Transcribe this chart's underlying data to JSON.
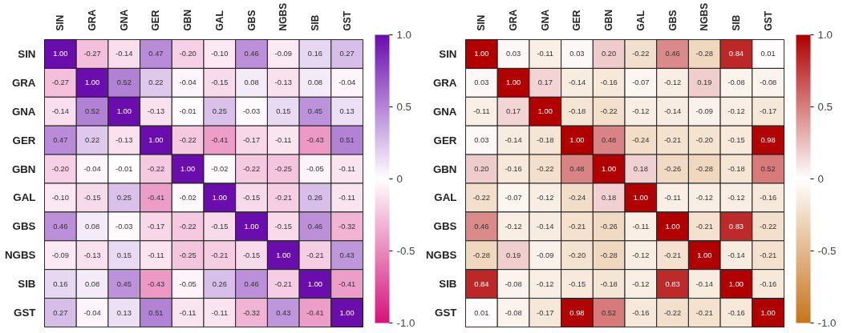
{
  "chart_data": [
    {
      "type": "heatmap",
      "categories": [
        "SIN",
        "GRA",
        "GNA",
        "GER",
        "GBN",
        "GAL",
        "GBS",
        "NGBS",
        "SIB",
        "GST"
      ],
      "y_categories": [
        "SIN",
        "GRA",
        "GNA",
        "GER",
        "GBN",
        "GAL",
        "GBS",
        "NGBS",
        "SIB",
        "GST"
      ],
      "colors": [
        "#d4147a",
        "#ffffff",
        "#6a0dad"
      ],
      "cells": [
        [
          1.0,
          -0.27,
          -0.14,
          0.47,
          -0.2,
          -0.1,
          0.46,
          -0.09,
          0.16,
          0.27
        ],
        [
          -0.27,
          1.0,
          0.52,
          0.22,
          -0.04,
          -0.15,
          0.08,
          -0.13,
          0.08,
          -0.04
        ],
        [
          -0.14,
          0.52,
          1.0,
          -0.13,
          -0.01,
          0.25,
          -0.03,
          0.15,
          0.45,
          0.13
        ],
        [
          0.47,
          0.22,
          -0.13,
          1.0,
          -0.22,
          -0.41,
          -0.17,
          -0.11,
          -0.43,
          0.51
        ],
        [
          -0.2,
          -0.04,
          -0.01,
          -0.22,
          1.0,
          -0.02,
          -0.22,
          -0.25,
          -0.05,
          -0.11
        ],
        [
          -0.1,
          -0.15,
          0.25,
          -0.41,
          -0.02,
          1.0,
          -0.15,
          -0.21,
          0.26,
          -0.11
        ],
        [
          0.46,
          0.08,
          -0.03,
          -0.17,
          -0.22,
          -0.15,
          1.0,
          -0.15,
          0.46,
          -0.32
        ],
        [
          -0.09,
          -0.13,
          0.15,
          -0.11,
          -0.25,
          -0.21,
          -0.15,
          1.0,
          -0.21,
          0.43
        ],
        [
          0.16,
          0.08,
          0.45,
          -0.43,
          -0.05,
          0.26,
          0.46,
          -0.21,
          1.0,
          -0.41
        ],
        [
          0.27,
          -0.04,
          0.13,
          0.51,
          -0.11,
          -0.11,
          -0.32,
          0.43,
          -0.41,
          1.0
        ]
      ],
      "cell_labels": [
        [
          "1.00",
          "-0.27",
          "-0.14",
          "0.47",
          "-0.20",
          "-0.10",
          "0.46",
          "-0.09",
          "0.16",
          "0.27"
        ],
        [
          "-0.27",
          "1.00",
          "0.52",
          "0.22",
          "-0.04",
          "-0.15",
          "0.08",
          "-0.13",
          "0.08",
          "-0.04"
        ],
        [
          "-0.14",
          "0.52",
          "1.00",
          "-0.13",
          "-0.01",
          "0.25",
          "-0.03",
          "0.15",
          "0.45",
          "0.13"
        ],
        [
          "0.47",
          "0.22",
          "-0.13",
          "1.00",
          "-0.22",
          "-0.41",
          "-0.17",
          "-0.11",
          "-0.43",
          "0.51"
        ],
        [
          "-0.20",
          "-0.04",
          "-0.01",
          "-0.22",
          "1.00",
          "-0.02",
          "-0.22",
          "-0.25",
          "-0.05",
          "-0.11"
        ],
        [
          "-0.10",
          "-0.15",
          "0.25",
          "-0.41",
          "-0.02",
          "1.00",
          "-0.15",
          "-0.21",
          "0.26",
          "-0.11"
        ],
        [
          "0.46",
          "0.08",
          "-0.03",
          "-0.17",
          "-0.22",
          "-0.15",
          "1.00",
          "-0.15",
          "0.46",
          "-0.32"
        ],
        [
          "-0.09",
          "-0.13",
          "0.15",
          "-0.11",
          "-0.25",
          "-0.21",
          "-0.15",
          "1.00",
          "-0.21",
          "0.43"
        ],
        [
          "0.16",
          "0.08",
          "0.45",
          "-0.43",
          "-0.05",
          "0.26",
          "0.46",
          "-0.21",
          "1.00",
          "-0.41"
        ],
        [
          "0.27",
          "-0.04",
          "0.13",
          "0.51",
          "-0.11",
          "-0.11",
          "-0.32",
          "0.43",
          "-0.41",
          "1.00"
        ]
      ],
      "clim": [
        -1,
        1
      ],
      "cticks": [
        {
          "value": -1,
          "label": "-1.0"
        },
        {
          "value": -0.5,
          "label": "-0.5"
        },
        0,
        {
          "value": 0.5,
          "label": "0.5"
        },
        {
          "value": 1,
          "label": "1.0"
        }
      ]
    },
    {
      "type": "heatmap",
      "categories": [
        "SIN",
        "GRA",
        "GNA",
        "GER",
        "GBN",
        "GAL",
        "GBS",
        "NGBS",
        "SIB",
        "GST"
      ],
      "y_categories": [
        "SIN",
        "GRA",
        "GNA",
        "GER",
        "GBN",
        "GAL",
        "GBS",
        "NGBS",
        "SIB",
        "GST"
      ],
      "colors": [
        "#c8741a",
        "#ffffff",
        "#b00000"
      ],
      "cells": [
        [
          1.0,
          0.03,
          -0.11,
          0.03,
          0.2,
          -0.22,
          0.46,
          -0.28,
          0.84,
          0.01
        ],
        [
          0.03,
          1.0,
          0.17,
          -0.14,
          -0.16,
          -0.07,
          -0.12,
          0.19,
          -0.08,
          -0.08
        ],
        [
          -0.11,
          0.17,
          1.0,
          -0.18,
          -0.22,
          -0.12,
          -0.14,
          -0.09,
          -0.12,
          -0.17
        ],
        [
          0.03,
          -0.14,
          -0.18,
          1.0,
          0.48,
          -0.24,
          -0.21,
          -0.2,
          -0.15,
          0.98
        ],
        [
          0.2,
          -0.16,
          -0.22,
          0.48,
          1.0,
          0.18,
          -0.26,
          -0.28,
          -0.18,
          0.52
        ],
        [
          -0.22,
          -0.07,
          -0.12,
          -0.24,
          0.18,
          1.0,
          -0.11,
          -0.12,
          -0.12,
          -0.16
        ],
        [
          0.46,
          -0.12,
          -0.14,
          -0.21,
          -0.26,
          -0.11,
          1.0,
          -0.21,
          0.83,
          -0.22
        ],
        [
          -0.28,
          0.19,
          -0.09,
          -0.2,
          -0.28,
          -0.12,
          -0.21,
          1.0,
          -0.14,
          -0.21
        ],
        [
          0.84,
          -0.08,
          -0.12,
          -0.15,
          -0.18,
          -0.12,
          0.83,
          -0.14,
          1.0,
          -0.16
        ],
        [
          0.01,
          -0.08,
          -0.17,
          0.98,
          0.52,
          -0.16,
          -0.22,
          -0.21,
          -0.16,
          1.0
        ]
      ],
      "cell_labels": [
        [
          "1.00",
          "0.03",
          "-0.11",
          "0.03",
          "0.20",
          "-0.22",
          "0.46",
          "-0.28",
          "0.84",
          "0.01"
        ],
        [
          "0.03",
          "1.00",
          "0.17",
          "-0.14",
          "-0.16",
          "-0.07",
          "-0.12",
          "0.19",
          "-0.08",
          "-0.08"
        ],
        [
          "-0.11",
          "0.17",
          "1.00",
          "-0.18",
          "-0.22",
          "-0.12",
          "-0.14",
          "-0.09",
          "-0.12",
          "-0.17"
        ],
        [
          "0.03",
          "-0.14",
          "-0.18",
          "1.00",
          "0.48",
          "-0.24",
          "-0.21",
          "-0.20",
          "-0.15",
          "0.98"
        ],
        [
          "0.20",
          "-0.16",
          "-0.22",
          "0.48",
          "1.00",
          "0.18",
          "-0.26",
          "-0.28",
          "-0.18",
          "0.52"
        ],
        [
          "-0.22",
          "-0.07",
          "-0.12",
          "-0.24",
          "0.18",
          "1.00",
          "-0.11",
          "-0.12",
          "-0.12",
          "-0.16"
        ],
        [
          "0.46",
          "-0.12",
          "-0.14",
          "-0.21",
          "-0.26",
          "-0.11",
          "1.00",
          "-0.21",
          "0.83",
          "-0.22"
        ],
        [
          "-0.28",
          "0.19",
          "-0.09",
          "-0.20",
          "-0.28",
          "-0.12",
          "-0.21",
          "1.00",
          "-0.14",
          "-0.21"
        ],
        [
          "0.84",
          "-0.08",
          "-0.12",
          "-0.15",
          "-0.18",
          "-0.12",
          "0.83",
          "-0.14",
          "1.00",
          "-0.16"
        ],
        [
          "0.01",
          "-0.08",
          "-0.17",
          "0.98",
          "0.52",
          "-0.16",
          "-0.22",
          "-0.21",
          "-0.16",
          "1.00"
        ]
      ],
      "clim": [
        -1,
        1
      ],
      "cticks": [
        {
          "value": -1,
          "label": "-1.0"
        },
        {
          "value": -0.5,
          "label": "-0.5"
        },
        0,
        {
          "value": 0.5,
          "label": "0.5"
        },
        {
          "value": 1,
          "label": "1.0"
        }
      ]
    }
  ]
}
